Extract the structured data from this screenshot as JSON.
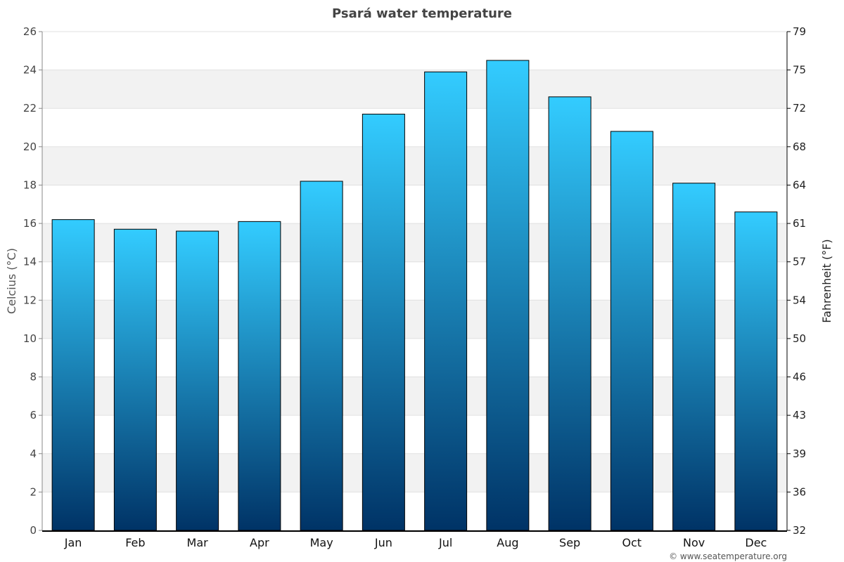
{
  "chart_data": {
    "type": "bar",
    "title": "Psará water temperature",
    "ylabel": "Celcius (°C)",
    "ylabel_right": "Fahrenheit (°F)",
    "categories": [
      "Jan",
      "Feb",
      "Mar",
      "Apr",
      "May",
      "Jun",
      "Jul",
      "Aug",
      "Sep",
      "Oct",
      "Nov",
      "Dec"
    ],
    "values": [
      16.2,
      15.7,
      15.6,
      16.1,
      18.2,
      21.7,
      23.9,
      24.5,
      22.6,
      20.8,
      18.1,
      16.6
    ],
    "ylim": [
      0,
      26
    ],
    "yticks": [
      0,
      2,
      4,
      6,
      8,
      10,
      12,
      14,
      16,
      18,
      20,
      22,
      24,
      26
    ],
    "yticks_right": [
      "32",
      "36",
      "39",
      "43",
      "46",
      "50",
      "54",
      "57",
      "61",
      "64",
      "68",
      "72",
      "75",
      "79"
    ],
    "grid": true,
    "colors": {
      "bar_top": "#33ccff",
      "bar_bottom": "#003366",
      "band": "#f2f2f2"
    },
    "credit": "© www.seatemperature.org"
  }
}
